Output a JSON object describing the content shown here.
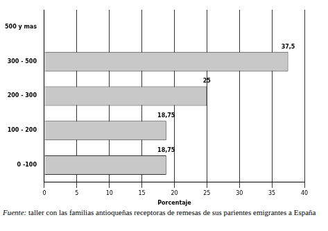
{
  "chart_data": {
    "type": "bar",
    "orientation": "horizontal",
    "x_label": "Porcentaje",
    "categories": [
      "500 y mas",
      "300 - 500",
      "200 - 300",
      "100 - 200",
      "0 -100"
    ],
    "values": [
      0,
      37.5,
      25,
      18.75,
      18.75
    ],
    "value_labels": [
      null,
      "37,5",
      "25",
      "18,75",
      "18,75"
    ],
    "data_labels": true,
    "color": "#c8c8c8",
    "xlim": [
      0,
      40
    ],
    "xticks": [
      0,
      5,
      10,
      15,
      20,
      25,
      30,
      35,
      40
    ],
    "grid": true,
    "source": "Fuente: taller con las familias antioqueñas receptoras de remesas de sus parientes emigrantes a España"
  }
}
